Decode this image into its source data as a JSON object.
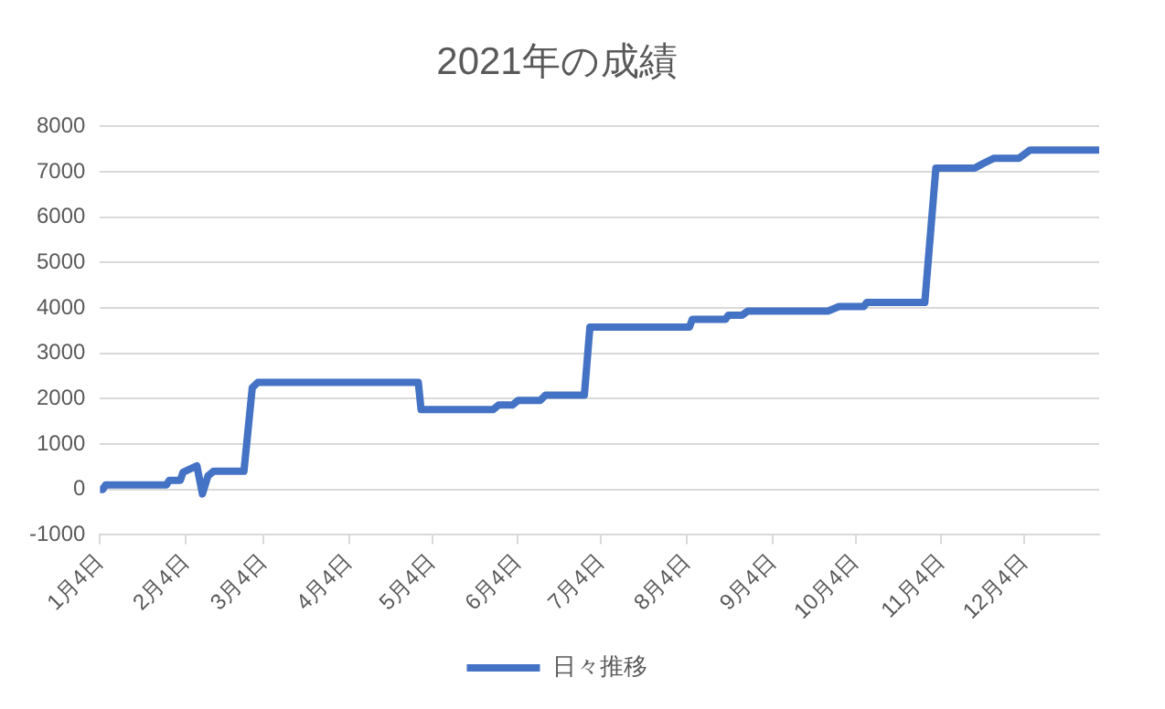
{
  "chart_data": {
    "type": "line",
    "title": "2021年の成績",
    "x": [
      "2021-01-04",
      "2021-01-05",
      "2021-01-06",
      "2021-01-28",
      "2021-01-29",
      "2021-02-02",
      "2021-02-03",
      "2021-02-08",
      "2021-02-10",
      "2021-02-12",
      "2021-02-14",
      "2021-02-25",
      "2021-02-28",
      "2021-03-02",
      "2021-04-29",
      "2021-04-30",
      "2021-05-26",
      "2021-05-28",
      "2021-06-02",
      "2021-06-04",
      "2021-06-12",
      "2021-06-14",
      "2021-06-28",
      "2021-06-30",
      "2021-08-05",
      "2021-08-06",
      "2021-08-18",
      "2021-08-19",
      "2021-08-24",
      "2021-08-26",
      "2021-09-24",
      "2021-09-28",
      "2021-10-07",
      "2021-10-08",
      "2021-10-29",
      "2021-11-02",
      "2021-11-16",
      "2021-11-19",
      "2021-11-23",
      "2021-12-02",
      "2021-12-06",
      "2021-12-31"
    ],
    "series": [
      {
        "name": "日々推移",
        "color": "#4472c4",
        "values": [
          0,
          0,
          100,
          100,
          200,
          200,
          380,
          520,
          -100,
          300,
          400,
          400,
          2240,
          2360,
          2360,
          1760,
          1760,
          1860,
          1860,
          1960,
          1960,
          2080,
          2080,
          3580,
          3580,
          3750,
          3750,
          3840,
          3840,
          3930,
          3930,
          4030,
          4030,
          4120,
          4120,
          7080,
          7080,
          7180,
          7300,
          7300,
          7480,
          7480
        ]
      }
    ],
    "xlim": [
      "2021-01-04",
      "2021-12-31"
    ],
    "xticks": [
      {
        "value": "2021-01-04",
        "label": "1月4日"
      },
      {
        "value": "2021-02-04",
        "label": "2月4日"
      },
      {
        "value": "2021-03-04",
        "label": "3月4日"
      },
      {
        "value": "2021-04-04",
        "label": "4月4日"
      },
      {
        "value": "2021-05-04",
        "label": "5月4日"
      },
      {
        "value": "2021-06-04",
        "label": "6月4日"
      },
      {
        "value": "2021-07-04",
        "label": "7月4日"
      },
      {
        "value": "2021-08-04",
        "label": "8月4日"
      },
      {
        "value": "2021-09-04",
        "label": "9月4日"
      },
      {
        "value": "2021-10-04",
        "label": "10月4日"
      },
      {
        "value": "2021-11-04",
        "label": "11月4日"
      },
      {
        "value": "2021-12-04",
        "label": "12月4日"
      }
    ],
    "ylim": [
      -1000,
      8000
    ],
    "yticks": [
      -1000,
      0,
      1000,
      2000,
      3000,
      4000,
      5000,
      6000,
      7000,
      8000
    ],
    "grid": "y",
    "legend": "bottom",
    "marker": "none",
    "line_style": "solid"
  }
}
